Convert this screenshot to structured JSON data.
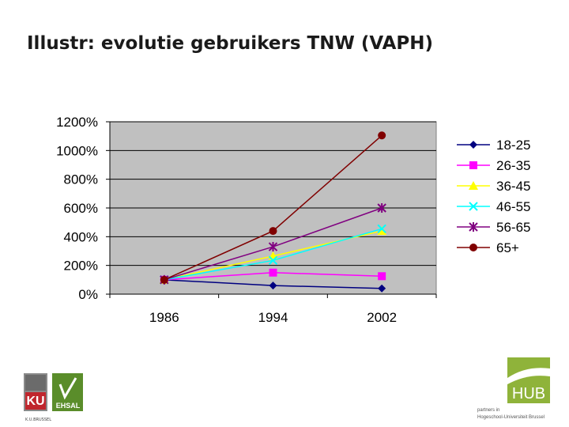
{
  "slide": {
    "title": "Illustr: evolutie gebruikers TNW (VAPH)"
  },
  "chart_data": {
    "type": "line",
    "categories": [
      "1986",
      "1994",
      "2002"
    ],
    "ylim": [
      0,
      1200
    ],
    "yticks": [
      "0%",
      "200%",
      "400%",
      "600%",
      "800%",
      "1000%",
      "1200%"
    ],
    "grid": true,
    "legend_position": "right",
    "series": [
      {
        "name": "18-25",
        "values": [
          100,
          60,
          40
        ],
        "color": "#000080",
        "marker": "diamond"
      },
      {
        "name": "26-35",
        "values": [
          100,
          150,
          125
        ],
        "color": "#ff00ff",
        "marker": "square"
      },
      {
        "name": "36-45",
        "values": [
          100,
          265,
          440
        ],
        "color": "#ffff00",
        "marker": "triangle"
      },
      {
        "name": "46-55",
        "values": [
          100,
          235,
          455
        ],
        "color": "#00ffff",
        "marker": "x"
      },
      {
        "name": "56-65",
        "values": [
          100,
          330,
          600
        ],
        "color": "#800080",
        "marker": "star"
      },
      {
        "name": "65+",
        "values": [
          100,
          440,
          1105
        ],
        "color": "#800000",
        "marker": "circle"
      }
    ],
    "plot_background": "#c0c0c0"
  },
  "logos": {
    "left_letters": "KU",
    "left_caption": "K.U.BRUSSEL",
    "left_brand": "EHSAL",
    "right_brand": "HUB",
    "right_caption_1": "partners in",
    "right_caption_2": "Hogeschool-Universiteit Brussel"
  }
}
